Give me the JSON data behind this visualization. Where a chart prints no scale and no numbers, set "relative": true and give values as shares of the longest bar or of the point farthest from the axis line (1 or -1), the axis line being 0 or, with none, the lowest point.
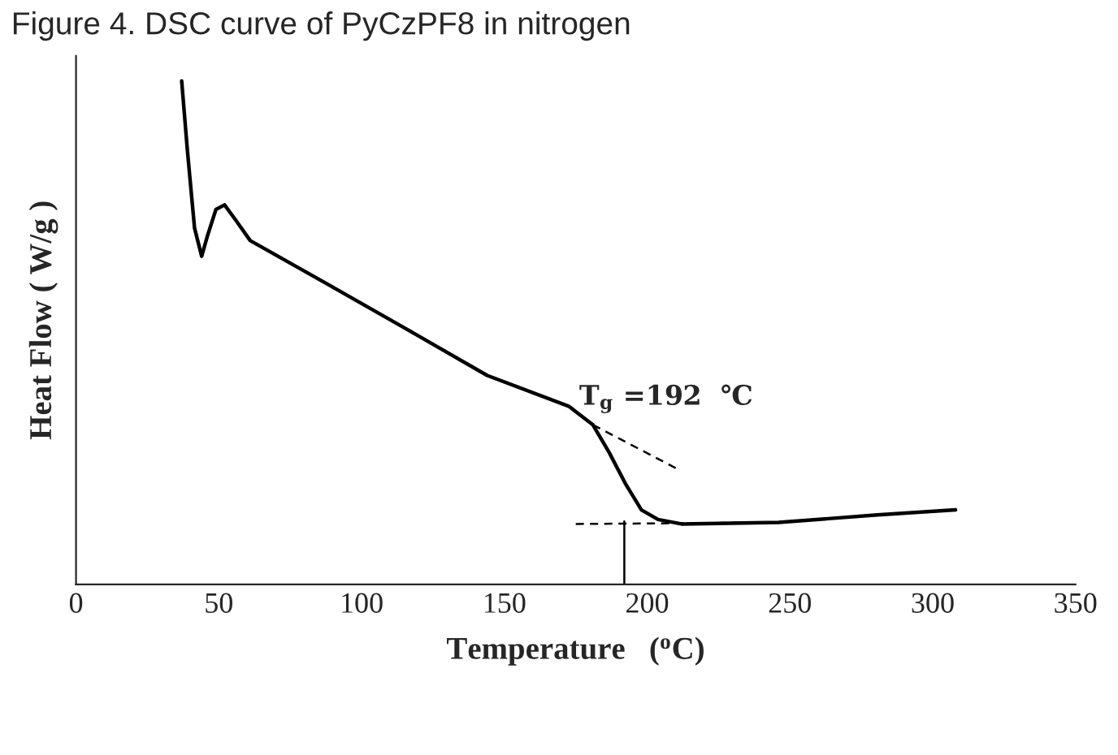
{
  "chart_data": {
    "type": "line",
    "title": "Figure 4. DSC curve of PyCzPF8 in nitrogen",
    "xlabel": "Temperature   ($^{o}$C)",
    "ylabel": "Heat Flow ( W/g )",
    "relative": true,
    "xlim": [
      0,
      350
    ],
    "xticks": [
      0,
      50,
      100,
      150,
      200,
      250,
      300,
      350
    ],
    "tick_labels": "x",
    "grid": false,
    "legend": false,
    "marker": "none",
    "series": [
      {
        "color": "#000000",
        "line_style": "solid",
        "x": [
          37,
          39,
          41.5,
          44,
          46,
          49,
          52,
          56,
          61,
          87,
          115.5,
          144,
          172.5,
          181,
          186.7,
          192.4,
          198,
          203.8,
          212,
          246,
          280.6,
          308
        ],
        "values": [
          1.0,
          0.862,
          0.708,
          0.652,
          0.692,
          0.745,
          0.754,
          0.723,
          0.683,
          0.6,
          0.508,
          0.415,
          0.354,
          0.317,
          0.262,
          0.2,
          0.148,
          0.129,
          0.12,
          0.123,
          0.138,
          0.148
        ]
      },
      {
        "color": "#000000",
        "line_style": "dashed",
        "x": [
          181,
          210
        ],
        "values": [
          0.317,
          0.231
        ]
      },
      {
        "color": "#000000",
        "line_style": "dashed",
        "x": [
          175,
          248
        ],
        "values": [
          0.12,
          0.123
        ]
      },
      {
        "color": "#000000",
        "line_style": "solid",
        "x": [
          192,
          192
        ],
        "values": [
          0,
          0.125
        ]
      }
    ],
    "annotations": [
      {
        "text": "T$_{g}$ =192  ℃",
        "x": 192,
        "y": 0.2
      }
    ]
  }
}
